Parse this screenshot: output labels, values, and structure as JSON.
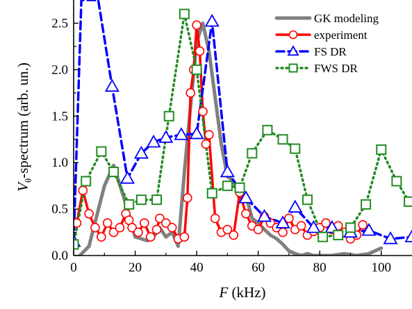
{
  "chart_data": {
    "type": "line",
    "xlabel_var": "F",
    "xlabel_unit": " (kHz)",
    "ylabel_var": "V",
    "ylabel_sub": "θ",
    "ylabel_rest": "-spectrum  (arb. un.)",
    "xlim": [
      0,
      110
    ],
    "ylim": [
      0,
      2.75
    ],
    "xticks": [
      0,
      20,
      40,
      60,
      80,
      100
    ],
    "yticks": [
      0.0,
      0.5,
      1.0,
      1.5,
      2.0,
      2.5
    ],
    "ytick_labels": [
      "0.0",
      "0.5",
      "1.0",
      "1.5",
      "2.0",
      "2.5"
    ],
    "legend_position": "top-right",
    "series": [
      {
        "name": "GK modeling",
        "color": "#808080",
        "style": "solid",
        "marker": "none",
        "x": [
          2,
          5,
          10,
          13,
          17,
          20,
          22,
          24,
          26,
          28,
          30,
          32,
          34,
          36,
          38,
          40,
          42,
          44,
          46,
          48,
          50,
          52,
          54,
          56,
          58,
          60,
          62,
          64,
          66,
          68,
          70,
          72,
          74,
          76,
          78,
          80,
          84,
          88,
          92,
          96,
          100
        ],
        "y": [
          0.0,
          0.1,
          0.75,
          0.97,
          0.55,
          0.2,
          0.18,
          0.16,
          0.2,
          0.3,
          0.2,
          0.25,
          0.1,
          0.9,
          1.6,
          2.3,
          2.5,
          2.2,
          1.7,
          1.2,
          0.85,
          0.8,
          0.6,
          0.65,
          0.4,
          0.35,
          0.28,
          0.22,
          0.18,
          0.12,
          0.05,
          0.02,
          0.0,
          0.02,
          0.0,
          0.0,
          0.0,
          0.02,
          0.0,
          0.02,
          0.08
        ]
      },
      {
        "name": "experiment",
        "color": "#ff0000",
        "style": "solid",
        "marker": "circle",
        "x": [
          1,
          3,
          5,
          7,
          9,
          11,
          13,
          15,
          17,
          18,
          19,
          21,
          23,
          25,
          27,
          28,
          30,
          32,
          34,
          36,
          37,
          38,
          39,
          40,
          41,
          42,
          43,
          44,
          46,
          48,
          50,
          52,
          54,
          56,
          58,
          60,
          62,
          64,
          66,
          68,
          70,
          72,
          74,
          76,
          78,
          80,
          82,
          84,
          86,
          88,
          90,
          92,
          94
        ],
        "y": [
          0.35,
          0.7,
          0.45,
          0.3,
          0.2,
          0.35,
          0.25,
          0.3,
          0.45,
          0.38,
          0.3,
          0.25,
          0.35,
          0.2,
          0.28,
          0.4,
          0.35,
          0.3,
          0.18,
          0.2,
          0.62,
          1.75,
          2.0,
          2.48,
          2.2,
          1.55,
          1.2,
          1.3,
          0.4,
          0.25,
          0.28,
          0.22,
          0.68,
          0.45,
          0.32,
          0.28,
          0.42,
          0.35,
          0.3,
          0.25,
          0.4,
          0.28,
          0.32,
          0.22,
          0.26,
          0.3,
          0.35,
          0.28,
          0.32,
          0.25,
          0.18,
          0.22,
          0.33
        ]
      },
      {
        "name": "FS DR",
        "color": "#0000ff",
        "style": "dashed",
        "marker": "triangle",
        "x": [
          0,
          2.5,
          8,
          12.5,
          17.5,
          22,
          26,
          30,
          35,
          40,
          45,
          50,
          56,
          62,
          68,
          72,
          78,
          84,
          90,
          96,
          103,
          110
        ],
        "y": [
          0.15,
          2.75,
          2.75,
          1.82,
          0.83,
          1.1,
          1.22,
          1.27,
          1.3,
          1.31,
          2.52,
          0.9,
          0.62,
          0.42,
          0.35,
          0.52,
          0.3,
          0.3,
          0.25,
          0.27,
          0.18,
          0.2
        ]
      },
      {
        "name": "FWS DR",
        "color": "#228b22",
        "style": "dotted",
        "marker": "square",
        "x": [
          0,
          4,
          9,
          13,
          18,
          22,
          27,
          31,
          36,
          40,
          45,
          50,
          54,
          58,
          63,
          68,
          72,
          76,
          81,
          86,
          90,
          95,
          100,
          105,
          109
        ],
        "y": [
          0.12,
          0.8,
          1.12,
          0.9,
          0.55,
          0.6,
          0.6,
          1.5,
          2.6,
          2.0,
          0.67,
          0.75,
          0.73,
          1.1,
          1.35,
          1.25,
          1.15,
          0.6,
          0.2,
          0.22,
          0.3,
          0.55,
          1.14,
          0.8,
          0.58
        ]
      }
    ]
  }
}
